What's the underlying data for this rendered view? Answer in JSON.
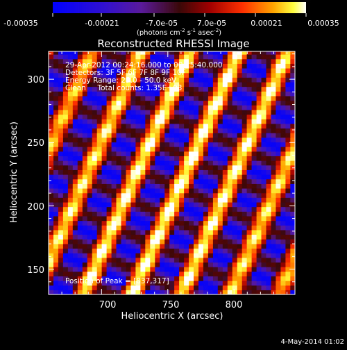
{
  "colorbar": {
    "ticks": [
      "-0.00035",
      "-0.00021",
      "-7.0e-05",
      "7.0e-05",
      "0.00021",
      "0.00035"
    ],
    "units_main": "(photons cm",
    "units_sup1": "-2",
    "units_mid": " s",
    "units_sup2": "-1",
    "units_end": " asec",
    "units_sup3": "-2",
    "units_close": ")",
    "range": [
      -0.00035,
      0.00035
    ]
  },
  "info": {
    "time_range": "29-Apr-2012 00:24:16.000 to 00:25:40.000",
    "detectors": "Detectors: 3F 5F 6F 7F 8F 9F 10F",
    "energy": "Energy Range: 25.0 - 50.0 keV",
    "clean": "Clean     Total counts: 1.35E+03",
    "peak": "Position of Peak = [837,317]"
  },
  "footer_date": "4-May-2014 01:02",
  "chart_data": {
    "type": "heatmap",
    "title": "Reconstructed RHESSI Image",
    "xlabel": "Heliocentric X (arcsec)",
    "ylabel": "Heliocentric Y (arcsec)",
    "xlim": [
      660,
      846
    ],
    "ylim": [
      130,
      322
    ],
    "xticks": [
      700,
      750,
      800
    ],
    "yticks": [
      150,
      200,
      250,
      300
    ],
    "xtick_labels": [
      "700",
      "750",
      "800"
    ],
    "ytick_labels": [
      "150",
      "200",
      "250",
      "300"
    ],
    "peak_position": [
      837,
      317
    ],
    "pattern": "diagonal interference fringes, ~37 arcsec spacing",
    "colormap": "blue-purple-red-orange-yellow-white"
  }
}
